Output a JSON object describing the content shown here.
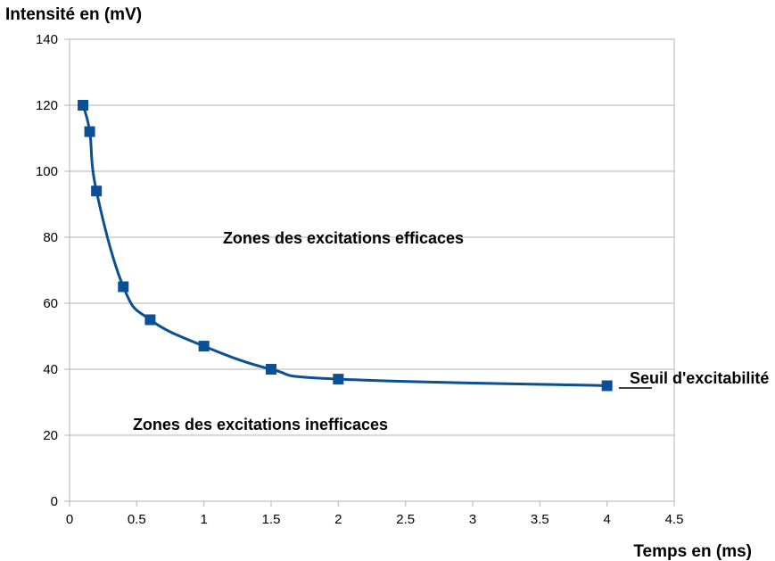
{
  "chart_data": {
    "type": "line",
    "title": "",
    "ylabel": "Intensité en (mV)",
    "xlabel": "Temps en (ms)",
    "xlim": [
      0,
      4.5
    ],
    "ylim": [
      0,
      140
    ],
    "x_ticks": [
      "0",
      "0.5",
      "1",
      "1.5",
      "2",
      "2.5",
      "3",
      "3.5",
      "4",
      "4.5"
    ],
    "y_ticks": [
      "0",
      "20",
      "40",
      "60",
      "80",
      "100",
      "120",
      "140"
    ],
    "grid": "horizontal",
    "series": [
      {
        "color": "#0b4f94",
        "marker": "square",
        "x": [
          0.1,
          0.15,
          0.2,
          0.4,
          0.6,
          1.0,
          1.5,
          2.0,
          4.0
        ],
        "y": [
          120,
          112,
          94,
          65,
          55,
          47,
          40,
          37,
          35
        ]
      }
    ],
    "annotations": [
      {
        "text": "Zones des excitations efficaces"
      },
      {
        "text": "Zones des excitations inefficaces"
      },
      {
        "text": "Seuil d'excitabilité"
      }
    ]
  }
}
